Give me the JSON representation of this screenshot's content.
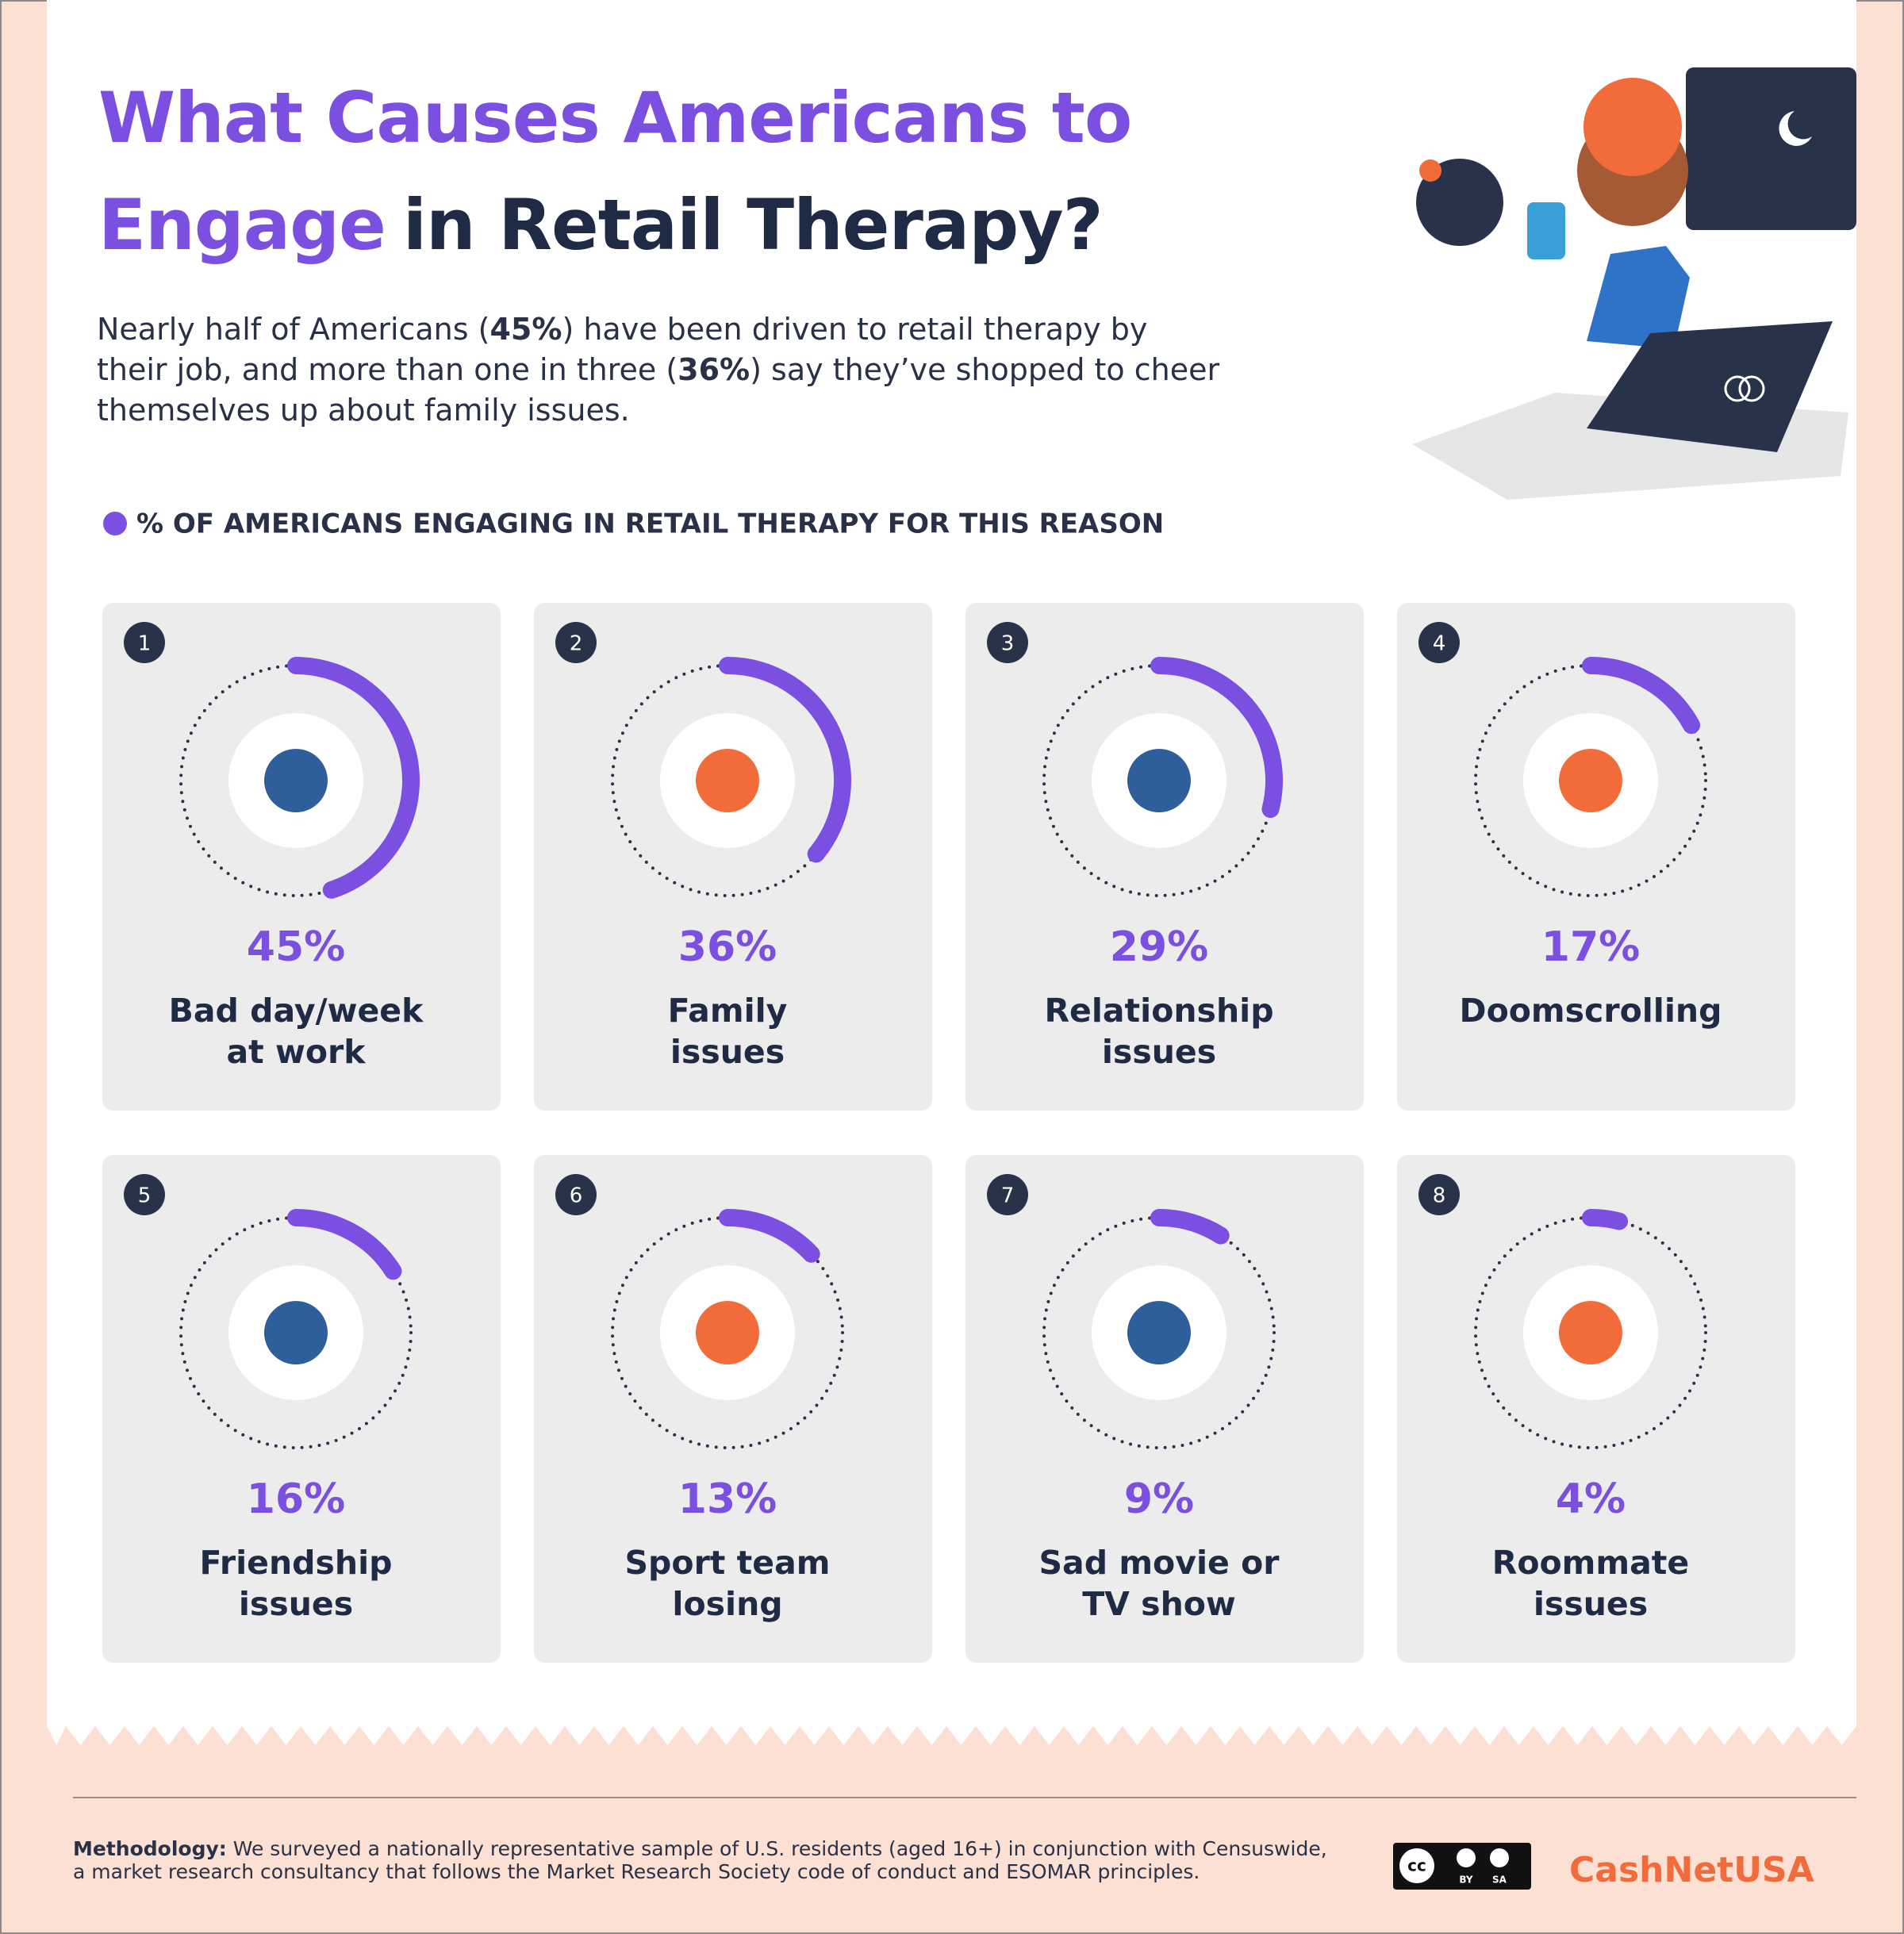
{
  "header": {
    "title": {
      "highlight_1": "What Causes Americans to",
      "highlight_2": "Engage",
      "rest": "in Retail Therapy?"
    },
    "intro": [
      "Nearly half of Americans (",
      "45%",
      ") have been driven to retail therapy by their job, and more than one in three (",
      "36%",
      ") say they’ve shopped to cheer themselves up about family issues."
    ]
  },
  "legend": "% OF AMERICANS ENGAGING IN RETAIL THERAPY FOR THIS REASON",
  "cards": [
    {
      "rank": "1",
      "value": 45,
      "value_label": "45%",
      "label": [
        "Bad day/week",
        "at work"
      ]
    },
    {
      "rank": "2",
      "value": 36,
      "value_label": "36%",
      "label": [
        "Family",
        "issues"
      ]
    },
    {
      "rank": "3",
      "value": 29,
      "value_label": "29%",
      "label": [
        "Relationship",
        "issues"
      ]
    },
    {
      "rank": "4",
      "value": 17,
      "value_label": "17%",
      "label": [
        "Doomscrolling"
      ]
    },
    {
      "rank": "5",
      "value": 16,
      "value_label": "16%",
      "label": [
        "Friendship",
        "issues"
      ]
    },
    {
      "rank": "6",
      "value": 13,
      "value_label": "13%",
      "label": [
        "Sport team",
        "losing"
      ]
    },
    {
      "rank": "7",
      "value": 9,
      "value_label": "9%",
      "label": [
        "Sad movie or",
        "TV show"
      ]
    },
    {
      "rank": "8",
      "value": 4,
      "value_label": "4%",
      "label": [
        "Roommate",
        "issues"
      ]
    }
  ],
  "footer": {
    "methodology_label": "Methodology:",
    "methodology": [
      "We surveyed a nationally representative sample of U.S. residents (aged 16+) in conjunction with Censuswide,",
      "a market research consultancy that follows the Market Research Society code of conduct and ESOMAR principles."
    ],
    "license": [
      "cc",
      "BY",
      "SA"
    ],
    "brand": "CashNetUSA"
  }
}
